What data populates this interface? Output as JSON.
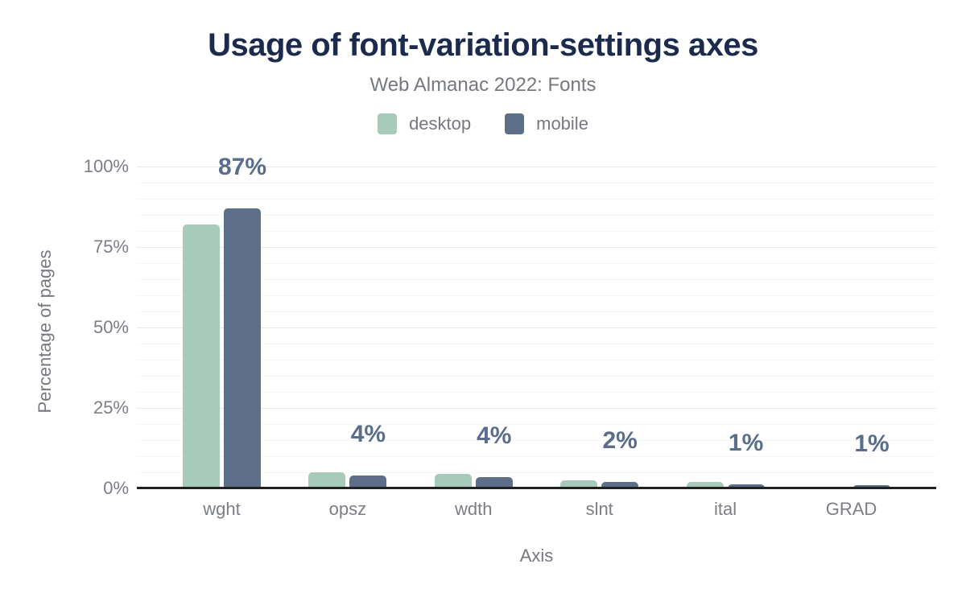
{
  "chart_data": {
    "type": "bar",
    "title": "Usage of font-variation-settings axes",
    "subtitle": "Web Almanac 2022: Fonts",
    "xlabel": "Axis",
    "ylabel": "Percentage of pages",
    "categories": [
      "wght",
      "opsz",
      "wdth",
      "slnt",
      "ital",
      "GRAD"
    ],
    "series": [
      {
        "name": "desktop",
        "color": "#a8cabb",
        "values": [
          82,
          5,
          4.5,
          2.5,
          2,
          0.6
        ]
      },
      {
        "name": "mobile",
        "color": "#5d6e88",
        "values": [
          87,
          4,
          3.5,
          2,
          1.2,
          0.9
        ]
      }
    ],
    "annotations": [
      "87%",
      "4%",
      "4%",
      "2%",
      "1%",
      "1%"
    ],
    "yticks": [
      {
        "label": "0%",
        "value": 0
      },
      {
        "label": "25%",
        "value": 25
      },
      {
        "label": "50%",
        "value": 50
      },
      {
        "label": "75%",
        "value": 75
      },
      {
        "label": "100%",
        "value": 100
      }
    ],
    "ylim": [
      0,
      100
    ],
    "grid": {
      "minor_step": 5,
      "major_step": 25,
      "visible": true
    },
    "legend_position": "top"
  },
  "colors": {
    "title": "#1c2b4d",
    "muted_text": "#75787d",
    "value_label": "#5a6d8b",
    "desktop": "#a8cabb",
    "mobile": "#5d6e88",
    "axis": "#212121"
  }
}
